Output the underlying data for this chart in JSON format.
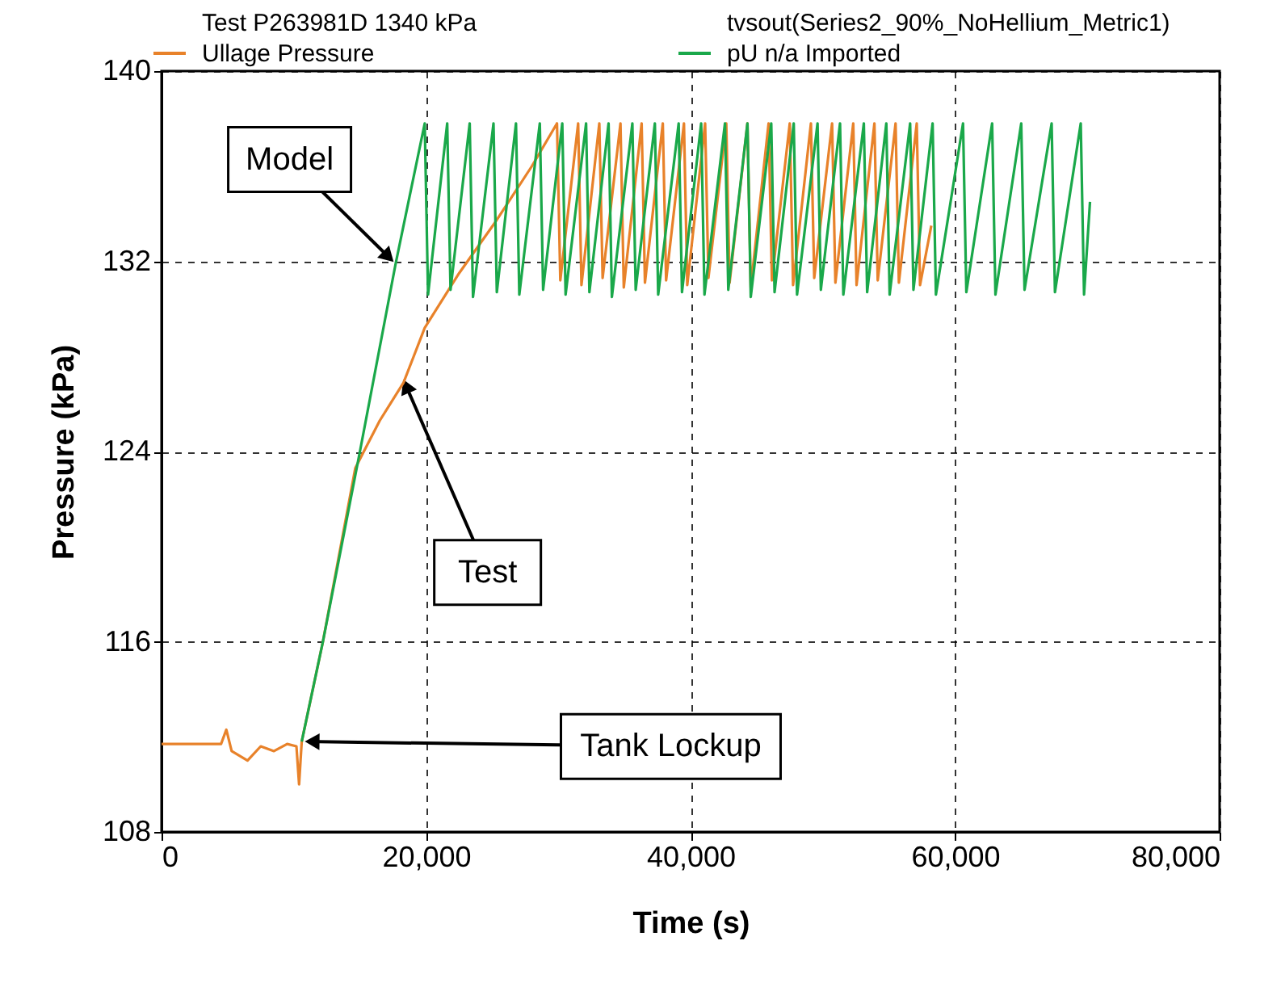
{
  "chart_data": {
    "type": "line",
    "xlabel": "Time (s)",
    "ylabel": "Pressure (kPa)",
    "xlim": [
      0,
      80000
    ],
    "xticks": [
      0,
      {
        "value": 20000,
        "label": "20,000"
      },
      {
        "value": 40000,
        "label": "40,000"
      },
      {
        "value": 60000,
        "label": "60,000"
      },
      {
        "value": 80000,
        "label": "80,000"
      }
    ],
    "ylim": [
      108,
      140
    ],
    "yticks": [
      108,
      116,
      124,
      132,
      140
    ],
    "grid": true,
    "legend": "top",
    "line_style": "solid",
    "series": [
      {
        "name": "Ullage Pressure",
        "color": "#e8822a",
        "x": [
          0,
          4500,
          4900,
          5300,
          6500,
          7500,
          8500,
          9500,
          10200,
          10400,
          10600,
          12200,
          14650,
          16500,
          18300,
          19900,
          22500,
          25300,
          28000,
          29900,
          30150,
          31500,
          31750,
          33100,
          33350,
          34700,
          34950,
          36300,
          36550,
          37900,
          38150,
          39500,
          39750,
          41100,
          41350,
          42700,
          42950,
          44300,
          44550,
          45900,
          46150,
          47500,
          47750,
          49100,
          49350,
          50700,
          50950,
          52300,
          52550,
          53900,
          54150,
          55500,
          55750,
          57100,
          57350,
          58200
        ],
        "values": [
          111.7,
          111.7,
          112.3,
          111.4,
          111.0,
          111.6,
          111.4,
          111.7,
          111.6,
          110.0,
          111.8,
          116.0,
          123.3,
          125.3,
          126.9,
          129.2,
          131.5,
          133.7,
          136.0,
          137.8,
          131.2,
          137.8,
          131.0,
          137.8,
          131.3,
          137.8,
          130.9,
          137.8,
          131.1,
          137.8,
          131.2,
          137.8,
          131.0,
          137.8,
          131.3,
          137.8,
          131.1,
          137.8,
          130.9,
          137.8,
          131.2,
          137.8,
          131.0,
          137.8,
          131.3,
          137.8,
          131.1,
          137.8,
          131.0,
          137.8,
          131.2,
          137.8,
          131.1,
          137.8,
          131.0,
          133.5
        ]
      },
      {
        "name": "pU n/a Imported",
        "color": "#1aa84a",
        "x": [
          10600,
          12200,
          15000,
          17700,
          19900,
          20150,
          21600,
          21850,
          23300,
          23550,
          25100,
          25350,
          26800,
          27050,
          28600,
          28850,
          30300,
          30550,
          32100,
          32350,
          33800,
          34050,
          35600,
          35850,
          37300,
          37550,
          39100,
          39350,
          40800,
          41050,
          42600,
          42850,
          44300,
          44550,
          46100,
          46350,
          47800,
          48050,
          49600,
          49850,
          51300,
          51550,
          53100,
          53350,
          54800,
          55050,
          56600,
          56850,
          58300,
          58550,
          60600,
          60850,
          62800,
          63050,
          65000,
          65250,
          67300,
          67550,
          69500,
          69750,
          70200
        ],
        "values": [
          111.8,
          116.0,
          124.0,
          131.9,
          137.8,
          130.6,
          137.8,
          130.8,
          137.8,
          130.5,
          137.8,
          130.7,
          137.8,
          130.6,
          137.8,
          130.8,
          137.8,
          130.6,
          137.8,
          130.7,
          137.8,
          130.5,
          137.8,
          130.8,
          137.8,
          130.6,
          137.8,
          130.7,
          137.8,
          130.6,
          137.8,
          130.8,
          137.8,
          130.5,
          137.8,
          130.7,
          137.8,
          130.6,
          137.8,
          130.8,
          137.8,
          130.6,
          137.8,
          130.7,
          137.8,
          130.6,
          137.8,
          130.8,
          137.8,
          130.6,
          137.8,
          130.7,
          137.8,
          130.6,
          137.8,
          130.8,
          137.8,
          130.7,
          137.8,
          130.6,
          134.5
        ]
      }
    ],
    "annotations": [
      "Test P263981D 1340 kPa",
      "tvsout(Series2_90%_NoHellium_Metric1)",
      {
        "text": "Model",
        "x": 17500,
        "y": 132.0
      },
      {
        "text": "Test",
        "x": 18300,
        "y": 127.0
      },
      {
        "text": "Tank Lockup",
        "x": 10900,
        "y": 111.8
      }
    ]
  }
}
